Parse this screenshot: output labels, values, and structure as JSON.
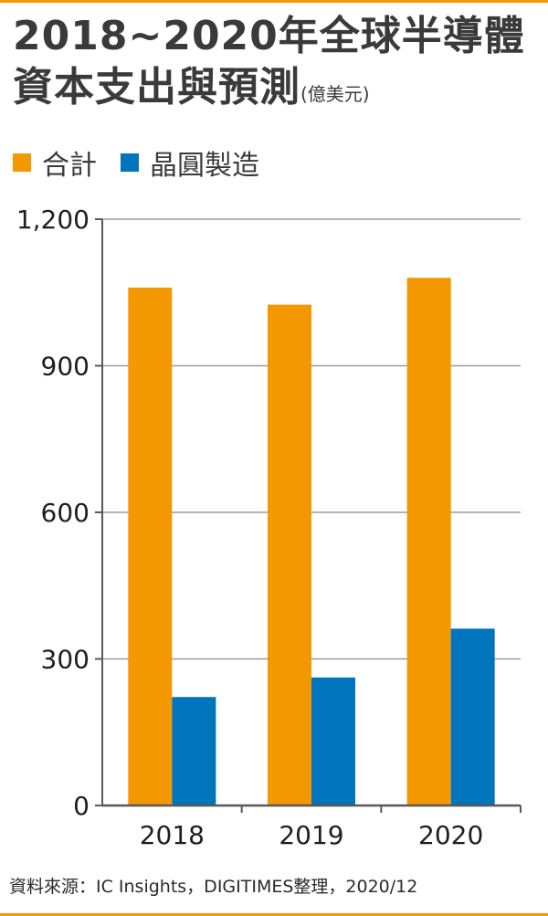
{
  "title": {
    "line1": "2018~2020年全球半導體",
    "line2": "資本支出與預測",
    "unit": "(億美元)"
  },
  "colors": {
    "total": "#F39800",
    "fab": "#0075BD",
    "grid": "#9a9a9a",
    "axis": "#595959",
    "rule": "#F39800"
  },
  "legend": [
    {
      "label": "合計",
      "color_key": "total"
    },
    {
      "label": "晶圓製造",
      "color_key": "fab"
    }
  ],
  "chart_data": {
    "type": "bar",
    "categories": [
      "2018",
      "2019",
      "2020"
    ],
    "series": [
      {
        "name": "合計",
        "values": [
          1060,
          1025,
          1080
        ]
      },
      {
        "name": "晶圓製造",
        "values": [
          222,
          262,
          362
        ]
      }
    ],
    "ylim": [
      0,
      1200
    ],
    "yticks": [
      0,
      300,
      600,
      900,
      1200
    ],
    "ytick_labels": [
      "0",
      "300",
      "600",
      "900",
      "1,200"
    ],
    "grid": true,
    "legend_position": "top-left"
  },
  "source": "資料來源：IC Insights，DIGITIMES整理，2020/12"
}
